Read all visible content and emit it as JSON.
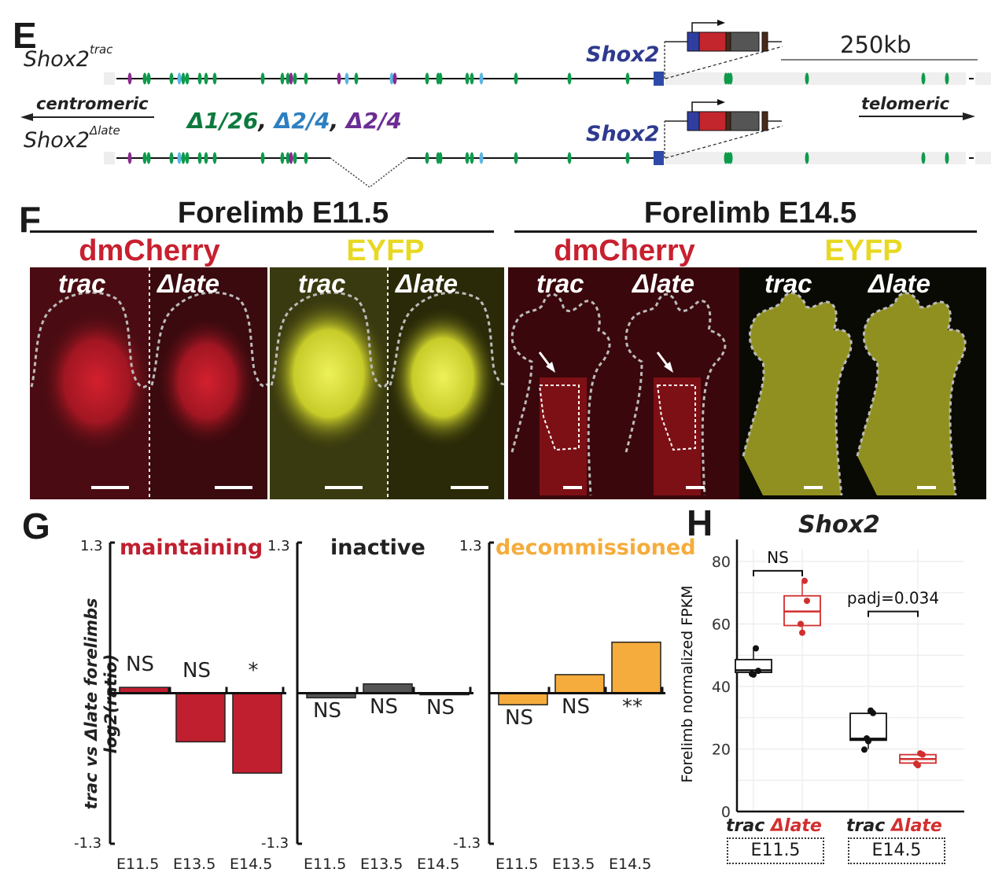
{
  "panels": {
    "E": {
      "letter": "E",
      "allele_top": {
        "base": "Shox2",
        "sup": "trac"
      },
      "allele_bottom": {
        "base": "Shox2",
        "sup": "Δlate"
      },
      "centromeric": "centromeric",
      "telomeric": "telomeric",
      "gene_label": "Shox2",
      "scale_label": "250kb",
      "deletion_parts": [
        {
          "text": "Δ1/26",
          "color": "#0b7a3e"
        },
        {
          "text": ", ",
          "color": "#222222"
        },
        {
          "text": "Δ2/4",
          "color": "#2d7fc1"
        },
        {
          "text": ", ",
          "color": "#222222"
        },
        {
          "text": "Δ2/4",
          "color": "#6b2d93"
        }
      ],
      "colors": {
        "green": "#0e9a4b",
        "blue": "#5bb6e3",
        "purple": "#8a2a8f",
        "gene": "#2e4aa8",
        "reporter_red": "#c4262e",
        "reporter_gray": "#555555",
        "reporter_brown": "#4a2a1a"
      }
    },
    "F": {
      "letter": "F",
      "groups": [
        {
          "title": "Forelimb E11.5",
          "channels": [
            {
              "name": "dmCherry",
              "color": "#c8202f",
              "labels": [
                "trac",
                "Δlate"
              ]
            },
            {
              "name": "EYFP",
              "color": "#e8d822",
              "labels": [
                "trac",
                "Δlate"
              ]
            }
          ]
        },
        {
          "title": "Forelimb E14.5",
          "channels": [
            {
              "name": "dmCherry",
              "color": "#c8202f",
              "labels": [
                "trac",
                "Δlate"
              ]
            },
            {
              "name": "EYFP",
              "color": "#e8d822",
              "labels": [
                "trac",
                "Δlate"
              ]
            }
          ]
        }
      ]
    },
    "G": {
      "letter": "G",
      "ylabel_line1": "trac vs Δlate forelimbs",
      "ylabel_line2": "log2(ratio)",
      "ytick_top": "1.3",
      "ytick_bottom": "-1.3"
    },
    "H": {
      "letter": "H",
      "title": "Shox2",
      "ylabel": "Forelimb normalized FPKM",
      "xlabels": [
        "trac",
        "Δlate",
        "trac",
        "Δlate"
      ],
      "stages": [
        "E11.5",
        "E14.5"
      ],
      "comparisons": [
        "NS",
        "padj=0.034"
      ]
    }
  },
  "chart_data": [
    {
      "type": "bar",
      "title": "maintaining",
      "color": "#c01f2f",
      "categories": [
        "E11.5",
        "E13.5",
        "E14.5"
      ],
      "values": [
        0.05,
        -0.42,
        -0.69
      ],
      "annotations": [
        "NS",
        "NS",
        "*"
      ],
      "ylim": [
        -1.3,
        1.3
      ],
      "yticks": [
        "1.3",
        "-1.3"
      ],
      "ylabel": "trac vs Δlate forelimbs log2(ratio)"
    },
    {
      "type": "bar",
      "title": "inactive",
      "color": "#555555",
      "categories": [
        "E11.5",
        "E13.5",
        "E14.5"
      ],
      "values": [
        -0.04,
        0.08,
        -0.01
      ],
      "annotations": [
        "NS",
        "NS",
        "NS"
      ],
      "ylim": [
        -1.3,
        1.3
      ],
      "yticks": [
        "1.3",
        "-1.3"
      ]
    },
    {
      "type": "bar",
      "title": "decommissioned",
      "color": "#f5ac3c",
      "categories": [
        "E11.5",
        "E13.5",
        "E14.5"
      ],
      "values": [
        -0.1,
        0.16,
        0.44
      ],
      "annotations": [
        "NS",
        "NS",
        "**"
      ],
      "ylim": [
        -1.3,
        1.3
      ],
      "yticks": [
        "1.3",
        "-1.3"
      ]
    },
    {
      "type": "box",
      "title": "Shox2",
      "ylabel": "Forelimb normalized FPKM",
      "ylim": [
        0,
        85
      ],
      "yticks": [
        0,
        20,
        40,
        60,
        80
      ],
      "grid": true,
      "groups": [
        {
          "stage": "E11.5",
          "genotype": "trac",
          "color": "#111111",
          "q1": 44.5,
          "median": 45.2,
          "q3": 48.6,
          "whisker_low": 44.0,
          "whisker_high": 52.2,
          "points": [
            52.2,
            45.0,
            44.0,
            43.8
          ]
        },
        {
          "stage": "E11.5",
          "genotype": "Δlate",
          "color": "#d22e2e",
          "q1": 59.5,
          "median": 64.0,
          "q3": 69.0,
          "whisker_low": 57.5,
          "whisker_high": 73.5,
          "points": [
            73.8,
            67.4,
            60.0,
            57.2
          ]
        },
        {
          "stage": "E14.5",
          "genotype": "trac",
          "color": "#111111",
          "q1": 22.8,
          "median": 23.3,
          "q3": 31.4,
          "whisker_low": 20.0,
          "whisker_high": 32.3,
          "points": [
            32.3,
            31.5,
            23.4,
            22.5,
            19.8
          ]
        },
        {
          "stage": "E14.5",
          "genotype": "Δlate",
          "color": "#d22e2e",
          "q1": 15.5,
          "median": 16.8,
          "q3": 18.2,
          "whisker_low": 15.0,
          "whisker_high": 18.6,
          "points": [
            18.6,
            18.2,
            15.3,
            14.8
          ]
        }
      ],
      "comparisons": [
        {
          "stage": "E11.5",
          "label": "NS",
          "y": 77
        },
        {
          "stage": "E14.5",
          "label": "padj=0.034",
          "y": 64
        }
      ]
    }
  ]
}
